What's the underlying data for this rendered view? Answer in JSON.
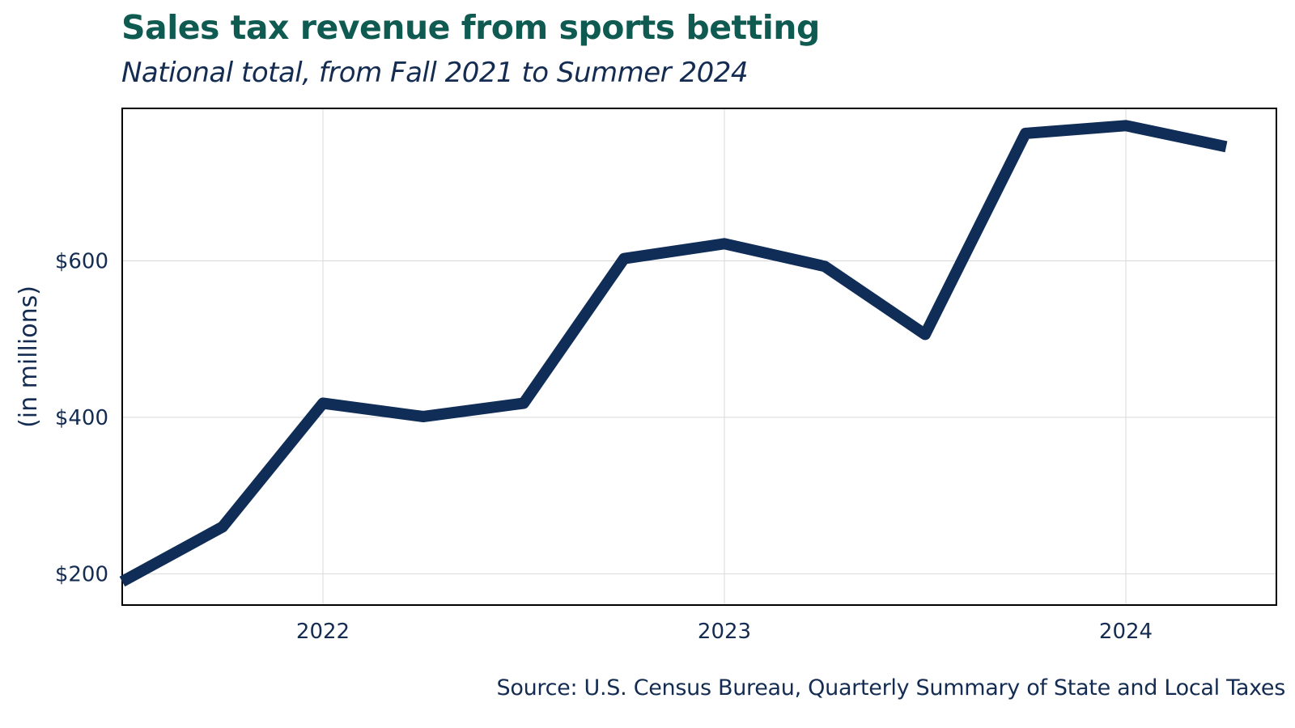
{
  "colors": {
    "title": "#0f5b52",
    "text": "#142c52",
    "line": "#0f2d57",
    "grid": "#d9d9d9",
    "frame": "#000000"
  },
  "chart_data": {
    "type": "line",
    "title": "Sales tax revenue from sports betting",
    "subtitle": "National total, from Fall 2021 to Summer 2024",
    "xlabel": "",
    "ylabel": "(in millions)",
    "source": "Source: U.S. Census Bureau, Quarterly Summary of State and Local Taxes",
    "xlim": [
      2021.5,
      2024.375
    ],
    "ylim": [
      160,
      795
    ],
    "grid": true,
    "x_ticks": [
      {
        "value": 2022,
        "label": "2022"
      },
      {
        "value": 2023,
        "label": "2023"
      },
      {
        "value": 2024,
        "label": "2024"
      }
    ],
    "y_ticks": [
      {
        "value": 200,
        "label": "$200"
      },
      {
        "value": 400,
        "label": "$400"
      },
      {
        "value": 600,
        "label": "$600"
      }
    ],
    "series": [
      {
        "x": [
          2021.5,
          2021.75,
          2022.0,
          2022.25,
          2022.5,
          2022.75,
          2023.0,
          2023.25,
          2023.5,
          2023.75,
          2024.0,
          2024.25
        ],
        "values": [
          190,
          260,
          418,
          401,
          418,
          603,
          622,
          593,
          506,
          763,
          773,
          746
        ]
      }
    ]
  }
}
